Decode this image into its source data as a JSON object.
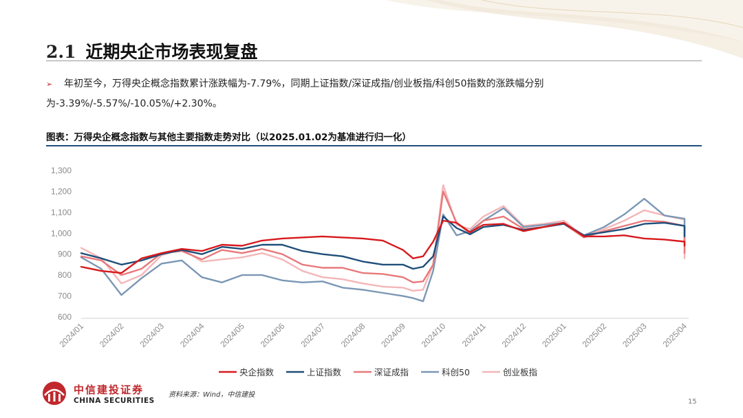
{
  "page": {
    "section_number": "2.1",
    "section_title": "近期央企市场表现复盘",
    "bullet": "年初至今，万得央企概念指数累计涨跌幅为-7.79%，同期上证指数/深证成指/创业板指/科创50指数的涨跌幅分别为-3.39%/-5.57%/-10.05%/+2.30%。",
    "chart_caption": "图表：万得央企概念指数与其他主要指数走势对比（以2025.01.02为基准进行归一化）",
    "source": "资料来源：Wind，中信建投",
    "page_number": "15",
    "logo_cn": "中信建投证券",
    "logo_en": "CHINA SECURITIES"
  },
  "chart_data": {
    "type": "line",
    "ylim": [
      600,
      1300
    ],
    "yticks": [
      "600",
      "700",
      "800",
      "900",
      "1,000",
      "1,100",
      "1,200",
      "1,300"
    ],
    "grid": false,
    "legend_position": "bottom",
    "x_labels": [
      "2024/01",
      "2024/02",
      "2024/03",
      "2024/04",
      "2024/05",
      "2024/06",
      "2024/07",
      "2024/08",
      "2024/09",
      "2024/10",
      "2024/11",
      "2024/12",
      "2025/01",
      "2025/02",
      "2025/03",
      "2025/04"
    ],
    "x": [
      "2024/01",
      "2024/01",
      "2024/02",
      "2024/02",
      "2024/03",
      "2024/03",
      "2024/04",
      "2024/04",
      "2024/05",
      "2024/05",
      "2024/06",
      "2024/06",
      "2024/07",
      "2024/07",
      "2024/08",
      "2024/08",
      "2024/09",
      "2024/09",
      "2024/09",
      "2024/09",
      "2024/10",
      "2024/10",
      "2024/10",
      "2024/11",
      "2024/11",
      "2024/12",
      "2024/12",
      "2025/01",
      "2025/01",
      "2025/02",
      "2025/02",
      "2025/03",
      "2025/03",
      "2025/04",
      "2025/04",
      "2025/04"
    ],
    "series": [
      {
        "name": "央企指数",
        "color": "#d7191c",
        "values": [
          840,
          820,
          810,
          880,
          905,
          925,
          915,
          945,
          940,
          965,
          975,
          980,
          985,
          980,
          975,
          965,
          920,
          880,
          890,
          960,
          1060,
          1050,
          1005,
          1040,
          1045,
          1010,
          1030,
          1050,
          985,
          985,
          990,
          975,
          970,
          960,
          940,
          960
        ]
      },
      {
        "name": "上证指数",
        "color": "#1f4e79",
        "values": [
          905,
          880,
          850,
          870,
          900,
          920,
          900,
          935,
          925,
          945,
          945,
          915,
          900,
          890,
          865,
          850,
          850,
          830,
          840,
          890,
          1080,
          1025,
          995,
          1030,
          1040,
          1015,
          1030,
          1045,
          990,
          1005,
          1020,
          1045,
          1050,
          1035,
          985,
          1000
        ]
      },
      {
        "name": "深证成指",
        "color": "#e8787a",
        "values": [
          890,
          870,
          800,
          830,
          905,
          915,
          875,
          920,
          905,
          925,
          900,
          850,
          835,
          835,
          810,
          805,
          790,
          765,
          770,
          850,
          1200,
          1050,
          1000,
          1060,
          1080,
          1020,
          1030,
          1045,
          980,
          1010,
          1035,
          1060,
          1055,
          1035,
          905,
          945
        ]
      },
      {
        "name": "科创50",
        "color": "#7b97b5",
        "values": [
          885,
          830,
          705,
          785,
          855,
          870,
          790,
          765,
          800,
          800,
          775,
          765,
          770,
          740,
          730,
          715,
          700,
          690,
          675,
          820,
          1090,
          990,
          1010,
          1060,
          1120,
          1030,
          1040,
          1050,
          990,
          1030,
          1090,
          1165,
          1085,
          1070,
          940,
          1060
        ]
      },
      {
        "name": "创业板指",
        "color": "#f4b6b8",
        "values": [
          930,
          880,
          760,
          800,
          895,
          925,
          865,
          875,
          885,
          905,
          875,
          820,
          790,
          780,
          760,
          745,
          740,
          725,
          730,
          850,
          1230,
          1040,
          1020,
          1080,
          1130,
          1035,
          1045,
          1060,
          985,
          1020,
          1060,
          1110,
          1085,
          1065,
          880,
          935
        ]
      }
    ]
  }
}
